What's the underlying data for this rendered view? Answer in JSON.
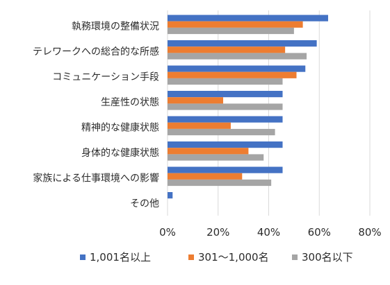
{
  "chart_data": {
    "type": "bar",
    "orientation": "horizontal",
    "title": "",
    "xlabel": "",
    "ylabel": "",
    "categories": [
      "執務環境の整備状況",
      "テレワークへの総合的な所感",
      "コミュニケーション手段",
      "生産性の状態",
      "精神的な健康状態",
      "身体的な健康状態",
      "家族による仕事環境への影響",
      "その他"
    ],
    "series": [
      {
        "name": "1,001名以上",
        "color": "#4472C4",
        "values": [
          63.5,
          59,
          54.5,
          45.5,
          45.5,
          45.5,
          45.5,
          2
        ]
      },
      {
        "name": "301～1,000名",
        "color": "#ED7D31",
        "values": [
          53.5,
          46.5,
          51,
          22,
          25,
          32,
          29.5,
          0
        ]
      },
      {
        "name": "300名以下",
        "color": "#A5A5A5",
        "values": [
          50,
          55,
          45.5,
          45.5,
          42.5,
          38,
          41,
          0
        ]
      }
    ],
    "xlim": [
      0,
      80
    ],
    "ticks": [
      "0%",
      "20%",
      "40%",
      "60%",
      "80%"
    ],
    "grid": true,
    "legend_position": "bottom"
  }
}
